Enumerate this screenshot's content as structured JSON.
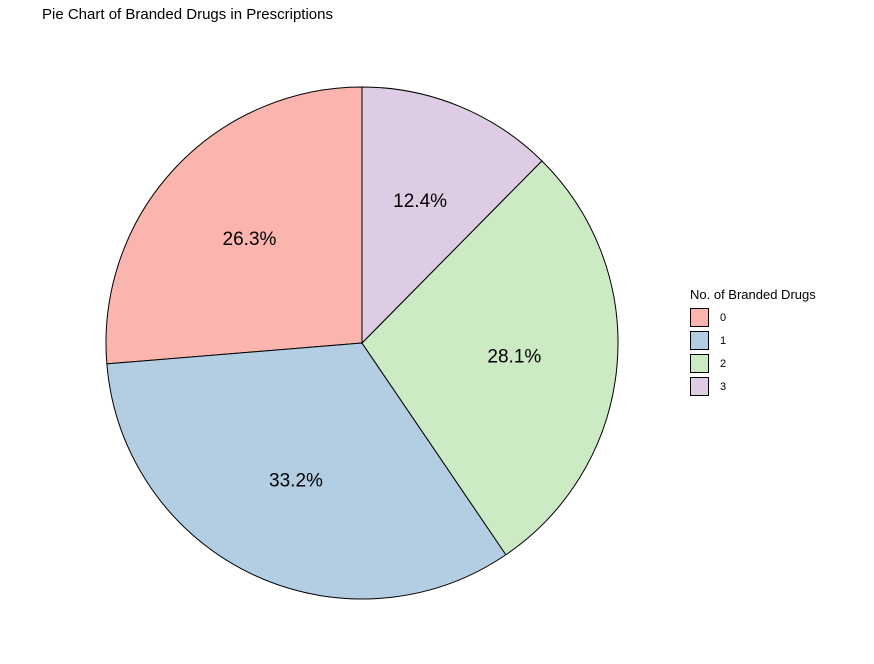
{
  "chart_data": {
    "type": "pie",
    "title": "Pie Chart of Branded Drugs in Prescriptions",
    "legend_title": "No. of Branded Drugs",
    "legend_position": "right",
    "categories": [
      "0",
      "1",
      "2",
      "3"
    ],
    "values": [
      26.3,
      33.2,
      28.1,
      12.4
    ],
    "labels": [
      "26.3%",
      "33.2%",
      "28.1%",
      "12.4%"
    ],
    "colors": [
      "#FBB4AE",
      "#B3CDE3",
      "#CCEBC5",
      "#DECBE4"
    ],
    "start": "12 o'clock",
    "direction": "counterclockwise"
  }
}
